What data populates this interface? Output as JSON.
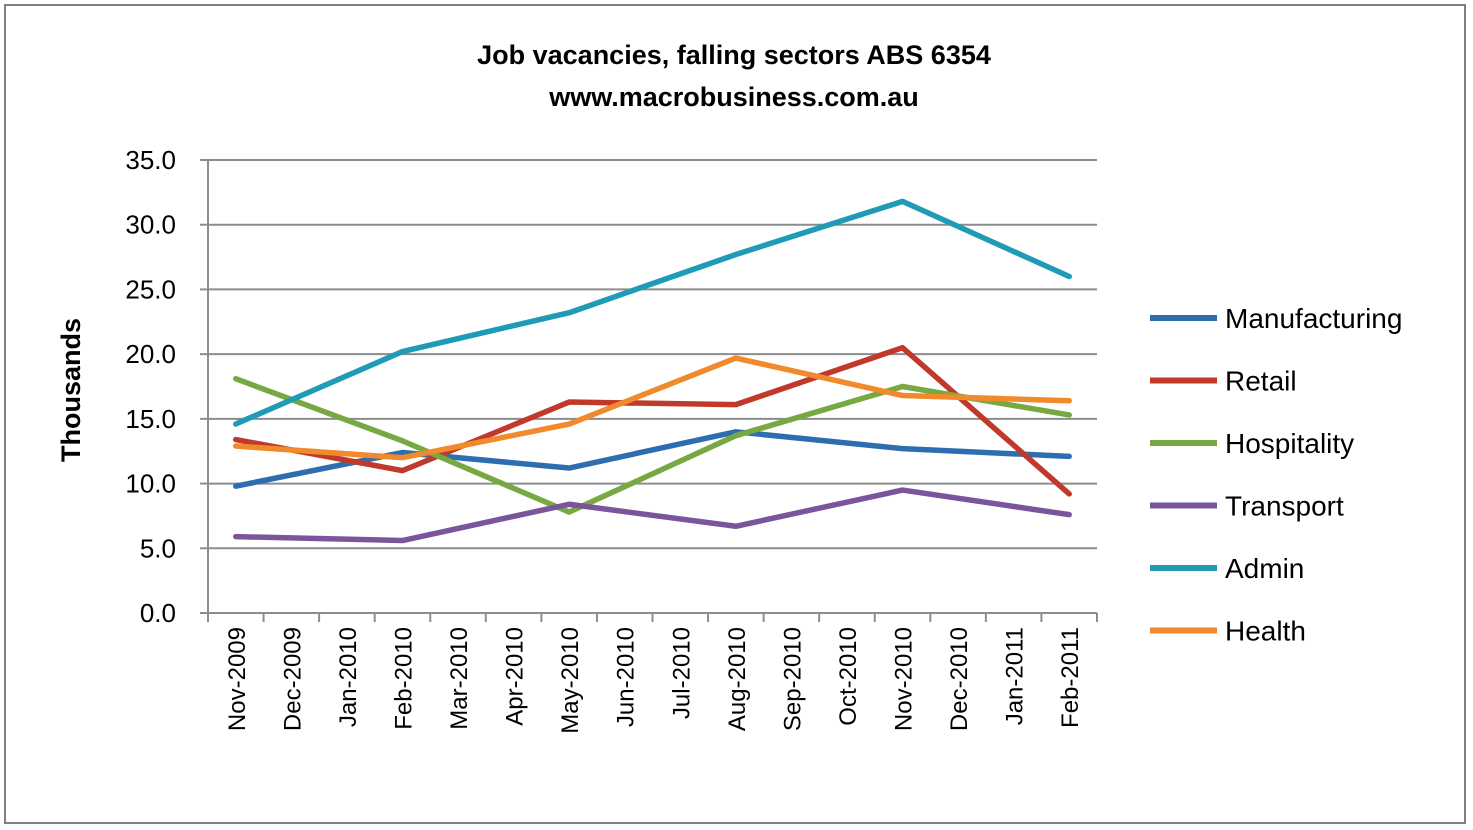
{
  "chart_data": {
    "type": "line",
    "title": "Job vacancies, falling sectors ABS 6354",
    "subtitle": "www.macrobusiness.com.au",
    "xlabel": "",
    "ylabel": "Thousands",
    "ylim": [
      0,
      35
    ],
    "yticks": [
      "0.0",
      "5.0",
      "10.0",
      "15.0",
      "20.0",
      "25.0",
      "30.0",
      "35.0"
    ],
    "grid": "horizontal",
    "legend": "right",
    "categories": [
      "Nov-2009",
      "Dec-2009",
      "Jan-2010",
      "Feb-2010",
      "Mar-2010",
      "Apr-2010",
      "May-2010",
      "Jun-2010",
      "Jul-2010",
      "Aug-2010",
      "Sep-2010",
      "Oct-2010",
      "Nov-2010",
      "Dec-2010",
      "Jan-2011",
      "Feb-2011"
    ],
    "series": [
      {
        "name": "Manufacturing",
        "color": "#2e6eb0",
        "x": [
          "Nov-2009",
          "Feb-2010",
          "May-2010",
          "Aug-2010",
          "Nov-2010",
          "Feb-2011"
        ],
        "values": [
          9.8,
          12.4,
          11.2,
          14.0,
          12.7,
          12.1
        ]
      },
      {
        "name": "Retail",
        "color": "#c0392b",
        "x": [
          "Nov-2009",
          "Feb-2010",
          "May-2010",
          "Aug-2010",
          "Nov-2010",
          "Feb-2011"
        ],
        "values": [
          13.4,
          11.0,
          16.3,
          16.1,
          20.5,
          9.2
        ]
      },
      {
        "name": "Hospitality",
        "color": "#77a841",
        "x": [
          "Nov-2009",
          "Feb-2010",
          "May-2010",
          "Aug-2010",
          "Nov-2010",
          "Feb-2011"
        ],
        "values": [
          18.1,
          13.3,
          7.8,
          13.7,
          17.5,
          15.3
        ]
      },
      {
        "name": "Transport",
        "color": "#7b559b",
        "x": [
          "Nov-2009",
          "Feb-2010",
          "May-2010",
          "Aug-2010",
          "Nov-2010",
          "Feb-2011"
        ],
        "values": [
          5.9,
          5.6,
          8.4,
          6.7,
          9.5,
          7.6
        ]
      },
      {
        "name": "Admin",
        "color": "#1f9bb5",
        "x": [
          "Nov-2009",
          "Feb-2010",
          "May-2010",
          "Aug-2010",
          "Nov-2010",
          "Feb-2011"
        ],
        "values": [
          14.6,
          20.2,
          23.2,
          27.7,
          31.8,
          26.0
        ]
      },
      {
        "name": "Health",
        "color": "#f08a2c",
        "x": [
          "Nov-2009",
          "Feb-2010",
          "May-2010",
          "Aug-2010",
          "Nov-2010",
          "Feb-2011"
        ],
        "values": [
          12.9,
          12.0,
          14.6,
          19.7,
          16.8,
          16.4
        ]
      }
    ]
  }
}
